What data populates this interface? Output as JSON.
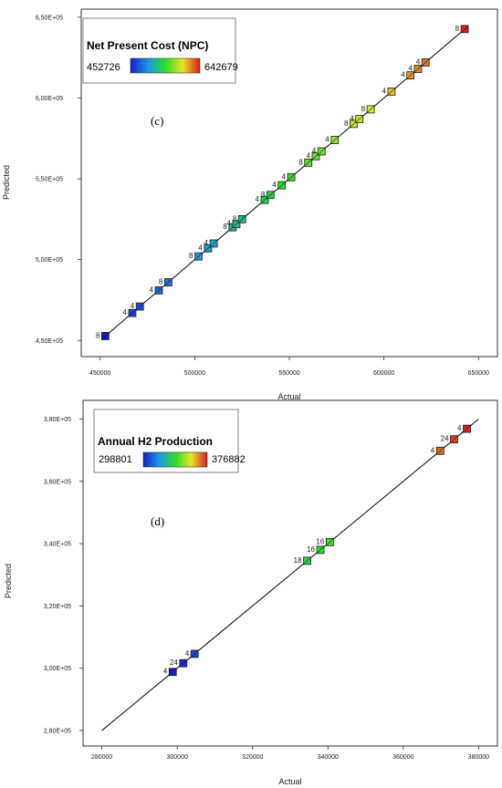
{
  "chart_data": [
    {
      "type": "scatter",
      "panel_label": "(c)",
      "xlabel": "Actual",
      "ylabel": "Predicted",
      "xlim": [
        440000,
        660000
      ],
      "ylim": [
        440000,
        655000
      ],
      "x_ticks": [
        "450000",
        "500000",
        "550000",
        "600000",
        "650000"
      ],
      "x_tick_values": [
        450000,
        500000,
        550000,
        600000,
        650000
      ],
      "y_ticks": [
        "4,50E+05",
        "5,00E+05",
        "5,50E+05",
        "6,00E+05",
        "6,50E+05"
      ],
      "y_tick_values": [
        450000,
        500000,
        550000,
        600000,
        650000
      ],
      "color_legend": {
        "title": "Net Present Cost (NPC)",
        "min_label": "452726",
        "max_label": "642679",
        "min": 452726,
        "max": 642679
      },
      "fit_line": {
        "x": [
          452726,
          642679
        ],
        "y": [
          452726,
          642679
        ]
      },
      "points": [
        {
          "x": 452726,
          "y": 452726,
          "label": "8"
        },
        {
          "x": 467000,
          "y": 467000,
          "label": "4"
        },
        {
          "x": 471000,
          "y": 471000,
          "label": "4"
        },
        {
          "x": 481000,
          "y": 481000,
          "label": "4"
        },
        {
          "x": 486000,
          "y": 486000,
          "label": "8"
        },
        {
          "x": 502000,
          "y": 502000,
          "label": "8"
        },
        {
          "x": 507000,
          "y": 507000,
          "label": "4"
        },
        {
          "x": 510000,
          "y": 510000,
          "label": "4"
        },
        {
          "x": 520000,
          "y": 520000,
          "label": "8"
        },
        {
          "x": 522000,
          "y": 522000,
          "label": "4"
        },
        {
          "x": 525000,
          "y": 525000,
          "label": "8"
        },
        {
          "x": 537000,
          "y": 537000,
          "label": "4"
        },
        {
          "x": 540000,
          "y": 540000,
          "label": "8"
        },
        {
          "x": 546000,
          "y": 546000,
          "label": "4"
        },
        {
          "x": 551000,
          "y": 551000,
          "label": "4"
        },
        {
          "x": 560000,
          "y": 560000,
          "label": "8"
        },
        {
          "x": 564000,
          "y": 564000,
          "label": "4"
        },
        {
          "x": 567000,
          "y": 567000,
          "label": "4"
        },
        {
          "x": 574000,
          "y": 574000,
          "label": "4"
        },
        {
          "x": 584000,
          "y": 584000,
          "label": "8"
        },
        {
          "x": 587000,
          "y": 587000,
          "label": "4"
        },
        {
          "x": 593000,
          "y": 593000,
          "label": "8"
        },
        {
          "x": 604000,
          "y": 604000,
          "label": "4"
        },
        {
          "x": 614000,
          "y": 614000,
          "label": "4"
        },
        {
          "x": 618000,
          "y": 618000,
          "label": "4"
        },
        {
          "x": 622000,
          "y": 622000,
          "label": "4"
        },
        {
          "x": 642679,
          "y": 642679,
          "label": "8"
        }
      ]
    },
    {
      "type": "scatter",
      "panel_label": "(d)",
      "xlabel": "Actual",
      "ylabel": "Predicted",
      "xlim": [
        275000,
        385000
      ],
      "ylim": [
        275000,
        386000
      ],
      "x_ticks": [
        "280000",
        "300000",
        "320000",
        "340000",
        "360000",
        "380000"
      ],
      "x_tick_values": [
        280000,
        300000,
        320000,
        340000,
        360000,
        380000
      ],
      "y_ticks": [
        "2,80E+05",
        "3,00E+05",
        "3,20E+05",
        "3,40E+05",
        "3,60E+05",
        "3,80E+05"
      ],
      "y_tick_values": [
        280000,
        300000,
        320000,
        340000,
        360000,
        380000
      ],
      "color_legend": {
        "title": "Annual H2 Production",
        "min_label": "298801",
        "max_label": "376882",
        "min": 298801,
        "max": 376882
      },
      "fit_line": {
        "x": [
          280000,
          380000
        ],
        "y": [
          280000,
          380000
        ]
      },
      "points": [
        {
          "x": 298801,
          "y": 298801,
          "label": "4"
        },
        {
          "x": 301600,
          "y": 301600,
          "label": "24"
        },
        {
          "x": 304600,
          "y": 304600,
          "label": "4"
        },
        {
          "x": 334500,
          "y": 334500,
          "label": "18"
        },
        {
          "x": 338000,
          "y": 338000,
          "label": "16"
        },
        {
          "x": 340500,
          "y": 340500,
          "label": "16"
        },
        {
          "x": 369800,
          "y": 369800,
          "label": "4"
        },
        {
          "x": 373500,
          "y": 373500,
          "label": "24"
        },
        {
          "x": 376882,
          "y": 376882,
          "label": "4"
        }
      ]
    }
  ]
}
